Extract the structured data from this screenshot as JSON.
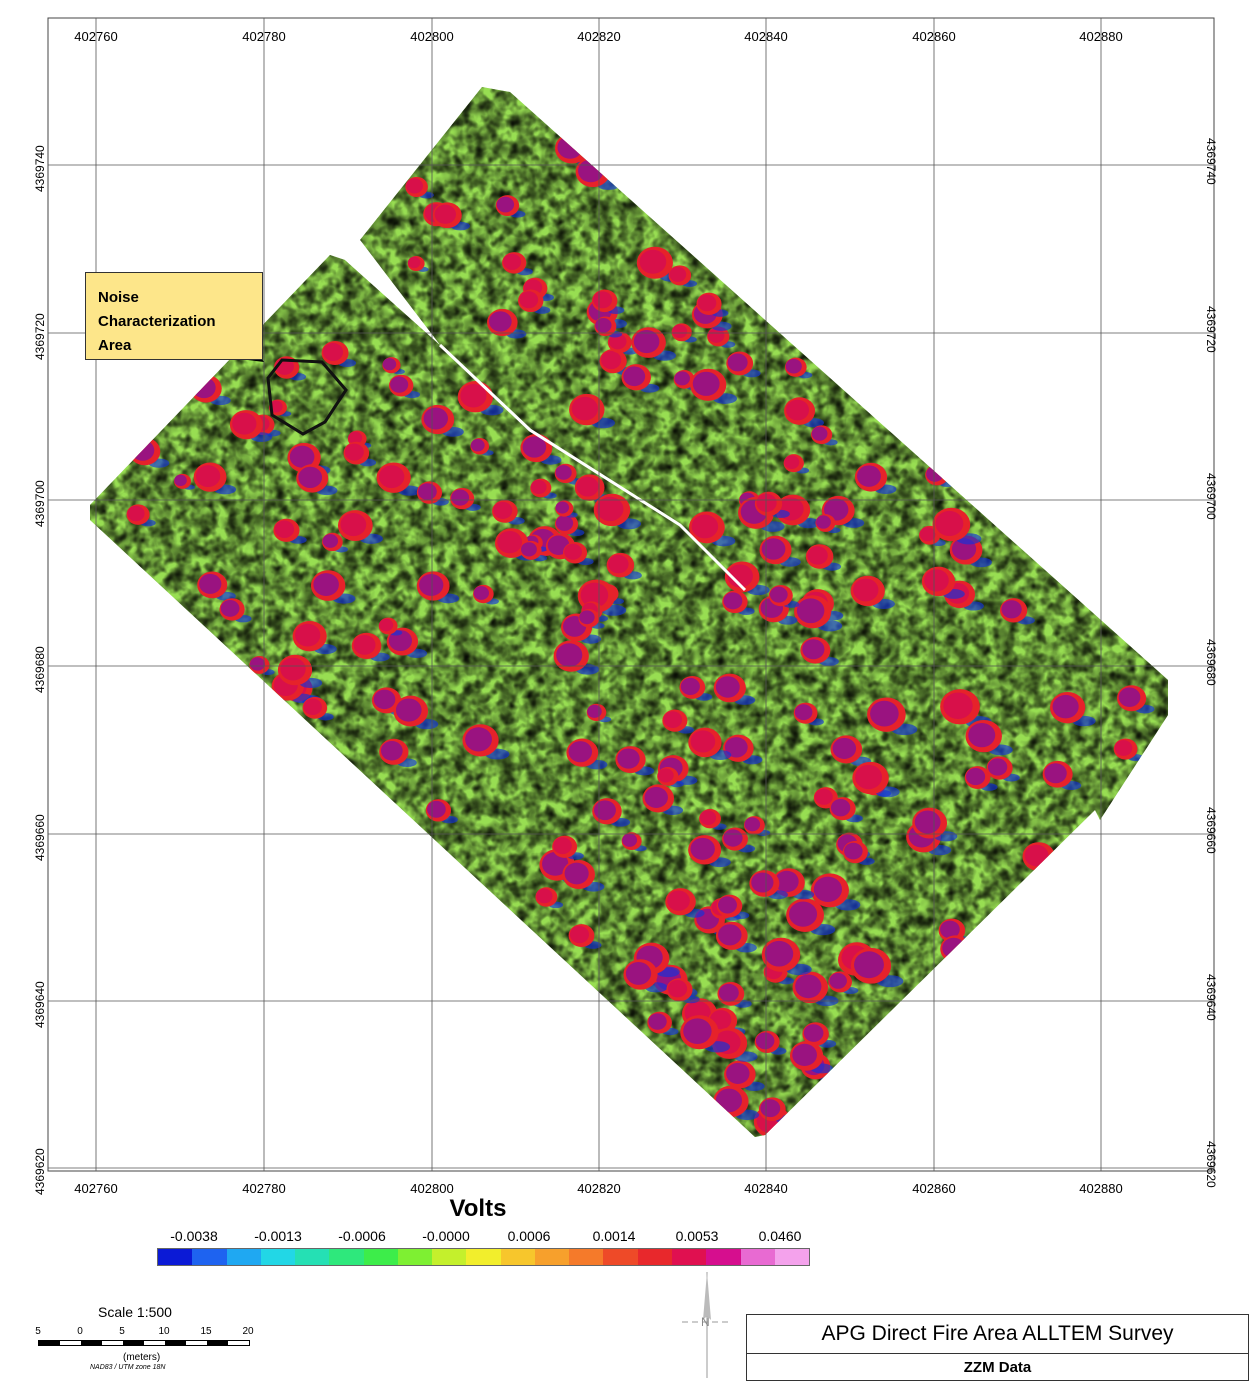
{
  "map": {
    "x_ticks": [
      "402760",
      "402780",
      "402800",
      "402820",
      "402840",
      "402860",
      "402880"
    ],
    "y_ticks": [
      "4369740",
      "4369720",
      "4369700",
      "4369680",
      "4369660",
      "4369640",
      "4369620"
    ]
  },
  "callout": {
    "lines": [
      "Noise",
      "Characterization",
      "Area"
    ]
  },
  "legend": {
    "title": "Volts",
    "labels": [
      "-0.0038",
      "-0.0013",
      "-0.0006",
      "-0.0000",
      "0.0006",
      "0.0014",
      "0.0053",
      "0.0460"
    ],
    "colors": [
      "#0b1ad6",
      "#1e63f0",
      "#1fa8f2",
      "#22d7e6",
      "#25e0b4",
      "#2ee87c",
      "#3ded4a",
      "#7ef032",
      "#c4f02c",
      "#f2ee2c",
      "#f7c62c",
      "#f7a02c",
      "#f57a2a",
      "#ee4a28",
      "#e8282c",
      "#e01050",
      "#d60e8e",
      "#e86ad2",
      "#f4a2ec"
    ]
  },
  "scale": {
    "title": "Scale 1:500",
    "numbers": [
      "5",
      "0",
      "5",
      "10",
      "15",
      "20"
    ],
    "unit": "(meters)",
    "projection": "NAD83 / UTM zone 18N"
  },
  "north": {
    "label": "N"
  },
  "title_block": {
    "title": "APG Direct Fire Area ALLTEM Survey",
    "subtitle": "ZZM Data"
  }
}
